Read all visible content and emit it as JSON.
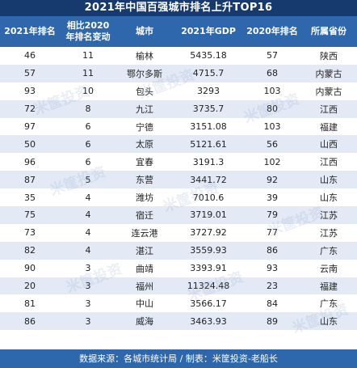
{
  "title": "2021年中国百强城市排名上升TOP16",
  "columns": {
    "rank2021": "2021年排名",
    "change": "相比2020年排名变动",
    "city": "城市",
    "gdp": "2021年GDP",
    "rank2020": "2020年排名",
    "province": "所属省份"
  },
  "rows": [
    {
      "rank2021": "46",
      "change": "11",
      "city": "榆林",
      "gdp": "5435.18",
      "rank2020": "57",
      "province": "陕西"
    },
    {
      "rank2021": "57",
      "change": "11",
      "city": "鄂尔多斯",
      "gdp": "4715.7",
      "rank2020": "68",
      "province": "内蒙古"
    },
    {
      "rank2021": "93",
      "change": "10",
      "city": "包头",
      "gdp": "3293",
      "rank2020": "103",
      "province": "内蒙古"
    },
    {
      "rank2021": "72",
      "change": "8",
      "city": "九江",
      "gdp": "3735.7",
      "rank2020": "80",
      "province": "江西"
    },
    {
      "rank2021": "97",
      "change": "6",
      "city": "宁德",
      "gdp": "3151.08",
      "rank2020": "103",
      "province": "福建"
    },
    {
      "rank2021": "50",
      "change": "6",
      "city": "太原",
      "gdp": "5121.61",
      "rank2020": "56",
      "province": "山西"
    },
    {
      "rank2021": "96",
      "change": "6",
      "city": "宜春",
      "gdp": "3191.3",
      "rank2020": "102",
      "province": "江西"
    },
    {
      "rank2021": "87",
      "change": "5",
      "city": "东营",
      "gdp": "3441.72",
      "rank2020": "92",
      "province": "山东"
    },
    {
      "rank2021": "35",
      "change": "4",
      "city": "潍坊",
      "gdp": "7010.6",
      "rank2020": "39",
      "province": "山东"
    },
    {
      "rank2021": "75",
      "change": "4",
      "city": "宿迁",
      "gdp": "3719.01",
      "rank2020": "79",
      "province": "江苏"
    },
    {
      "rank2021": "73",
      "change": "4",
      "city": "连云港",
      "gdp": "3727.92",
      "rank2020": "77",
      "province": "江苏"
    },
    {
      "rank2021": "82",
      "change": "4",
      "city": "湛江",
      "gdp": "3559.93",
      "rank2020": "86",
      "province": "广东"
    },
    {
      "rank2021": "90",
      "change": "3",
      "city": "曲靖",
      "gdp": "3393.91",
      "rank2020": "93",
      "province": "云南"
    },
    {
      "rank2021": "20",
      "change": "3",
      "city": "福州",
      "gdp": "11324.48",
      "rank2020": "23",
      "province": "福建"
    },
    {
      "rank2021": "81",
      "change": "3",
      "city": "中山",
      "gdp": "3566.17",
      "rank2020": "84",
      "province": "广东"
    },
    {
      "rank2021": "86",
      "change": "3",
      "city": "威海",
      "gdp": "3463.93",
      "rank2020": "89",
      "province": "山东"
    }
  ],
  "footer": "数据来源：各城市统计局 / 制表：米筐投资-老船长",
  "watermark": "米筐投资",
  "colors": {
    "header": "#2f67ad",
    "title": "#173a6e",
    "stripe": "#e3eaf6"
  }
}
